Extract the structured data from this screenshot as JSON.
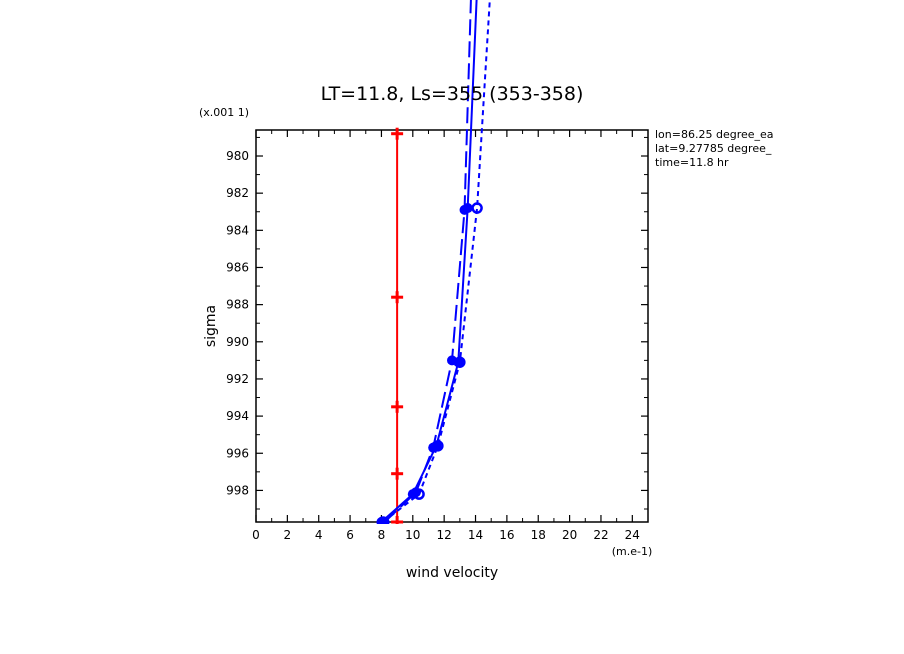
{
  "chart_data": {
    "type": "line",
    "title": "LT=11.8, Ls=355 (353-358)",
    "xlabel": "wind velocity",
    "ylabel": "sigma",
    "x_unit": "(m.e-1)",
    "y_unit": "(x.001 1)",
    "xlim": [
      0,
      25
    ],
    "ylim": [
      999.7,
      978.6
    ],
    "x_ticks": [
      "0",
      "2",
      "4",
      "6",
      "8",
      "10",
      "12",
      "14",
      "16",
      "18",
      "20",
      "22",
      "24"
    ],
    "y_ticks": [
      "980",
      "982",
      "984",
      "986",
      "988",
      "990",
      "992",
      "994",
      "996",
      "998"
    ],
    "x_tick_values": [
      0,
      2,
      4,
      6,
      8,
      10,
      12,
      14,
      16,
      18,
      20,
      22,
      24
    ],
    "y_tick_values": [
      980,
      982,
      984,
      986,
      988,
      990,
      992,
      994,
      996,
      998
    ],
    "info": [
      "lon=86.25 degree_ea",
      "lat=9.27785 degree_",
      "time=11.8 hr"
    ],
    "series": [
      {
        "color": "#ff0000",
        "dash": "solid",
        "marker": "plus",
        "x": [
          9.0,
          9.0,
          9.0,
          9.0,
          9.0,
          9.0,
          9.0
        ],
        "y": [
          978.8,
          987.6,
          993.5,
          997.1,
          998.9,
          999.7,
          999.7
        ],
        "marker_y": [
          978.8,
          987.6,
          993.5,
          997.1,
          999.7
        ]
      },
      {
        "color": "#0000ff",
        "dash": "solid",
        "marker": "dot",
        "x": [
          8.0,
          10.0,
          11.5,
          12.9,
          13.5,
          14.2
        ],
        "y": [
          999.7,
          998.2,
          995.6,
          991.1,
          982.8,
          969.0
        ]
      },
      {
        "color": "#0000ff",
        "dash": "longdash",
        "marker": "dot",
        "x": [
          8.2,
          10.2,
          11.3,
          12.5,
          13.3,
          13.8
        ],
        "y": [
          999.7,
          998.1,
          995.7,
          991.0,
          982.9,
          969.0
        ]
      },
      {
        "color": "#0000ff",
        "dash": "shortdash",
        "marker": "circle",
        "x": [
          8.1,
          10.4,
          11.6,
          13.0,
          14.1,
          15.1
        ],
        "y": [
          999.7,
          998.2,
          995.6,
          991.1,
          982.8,
          969.0
        ]
      }
    ]
  }
}
